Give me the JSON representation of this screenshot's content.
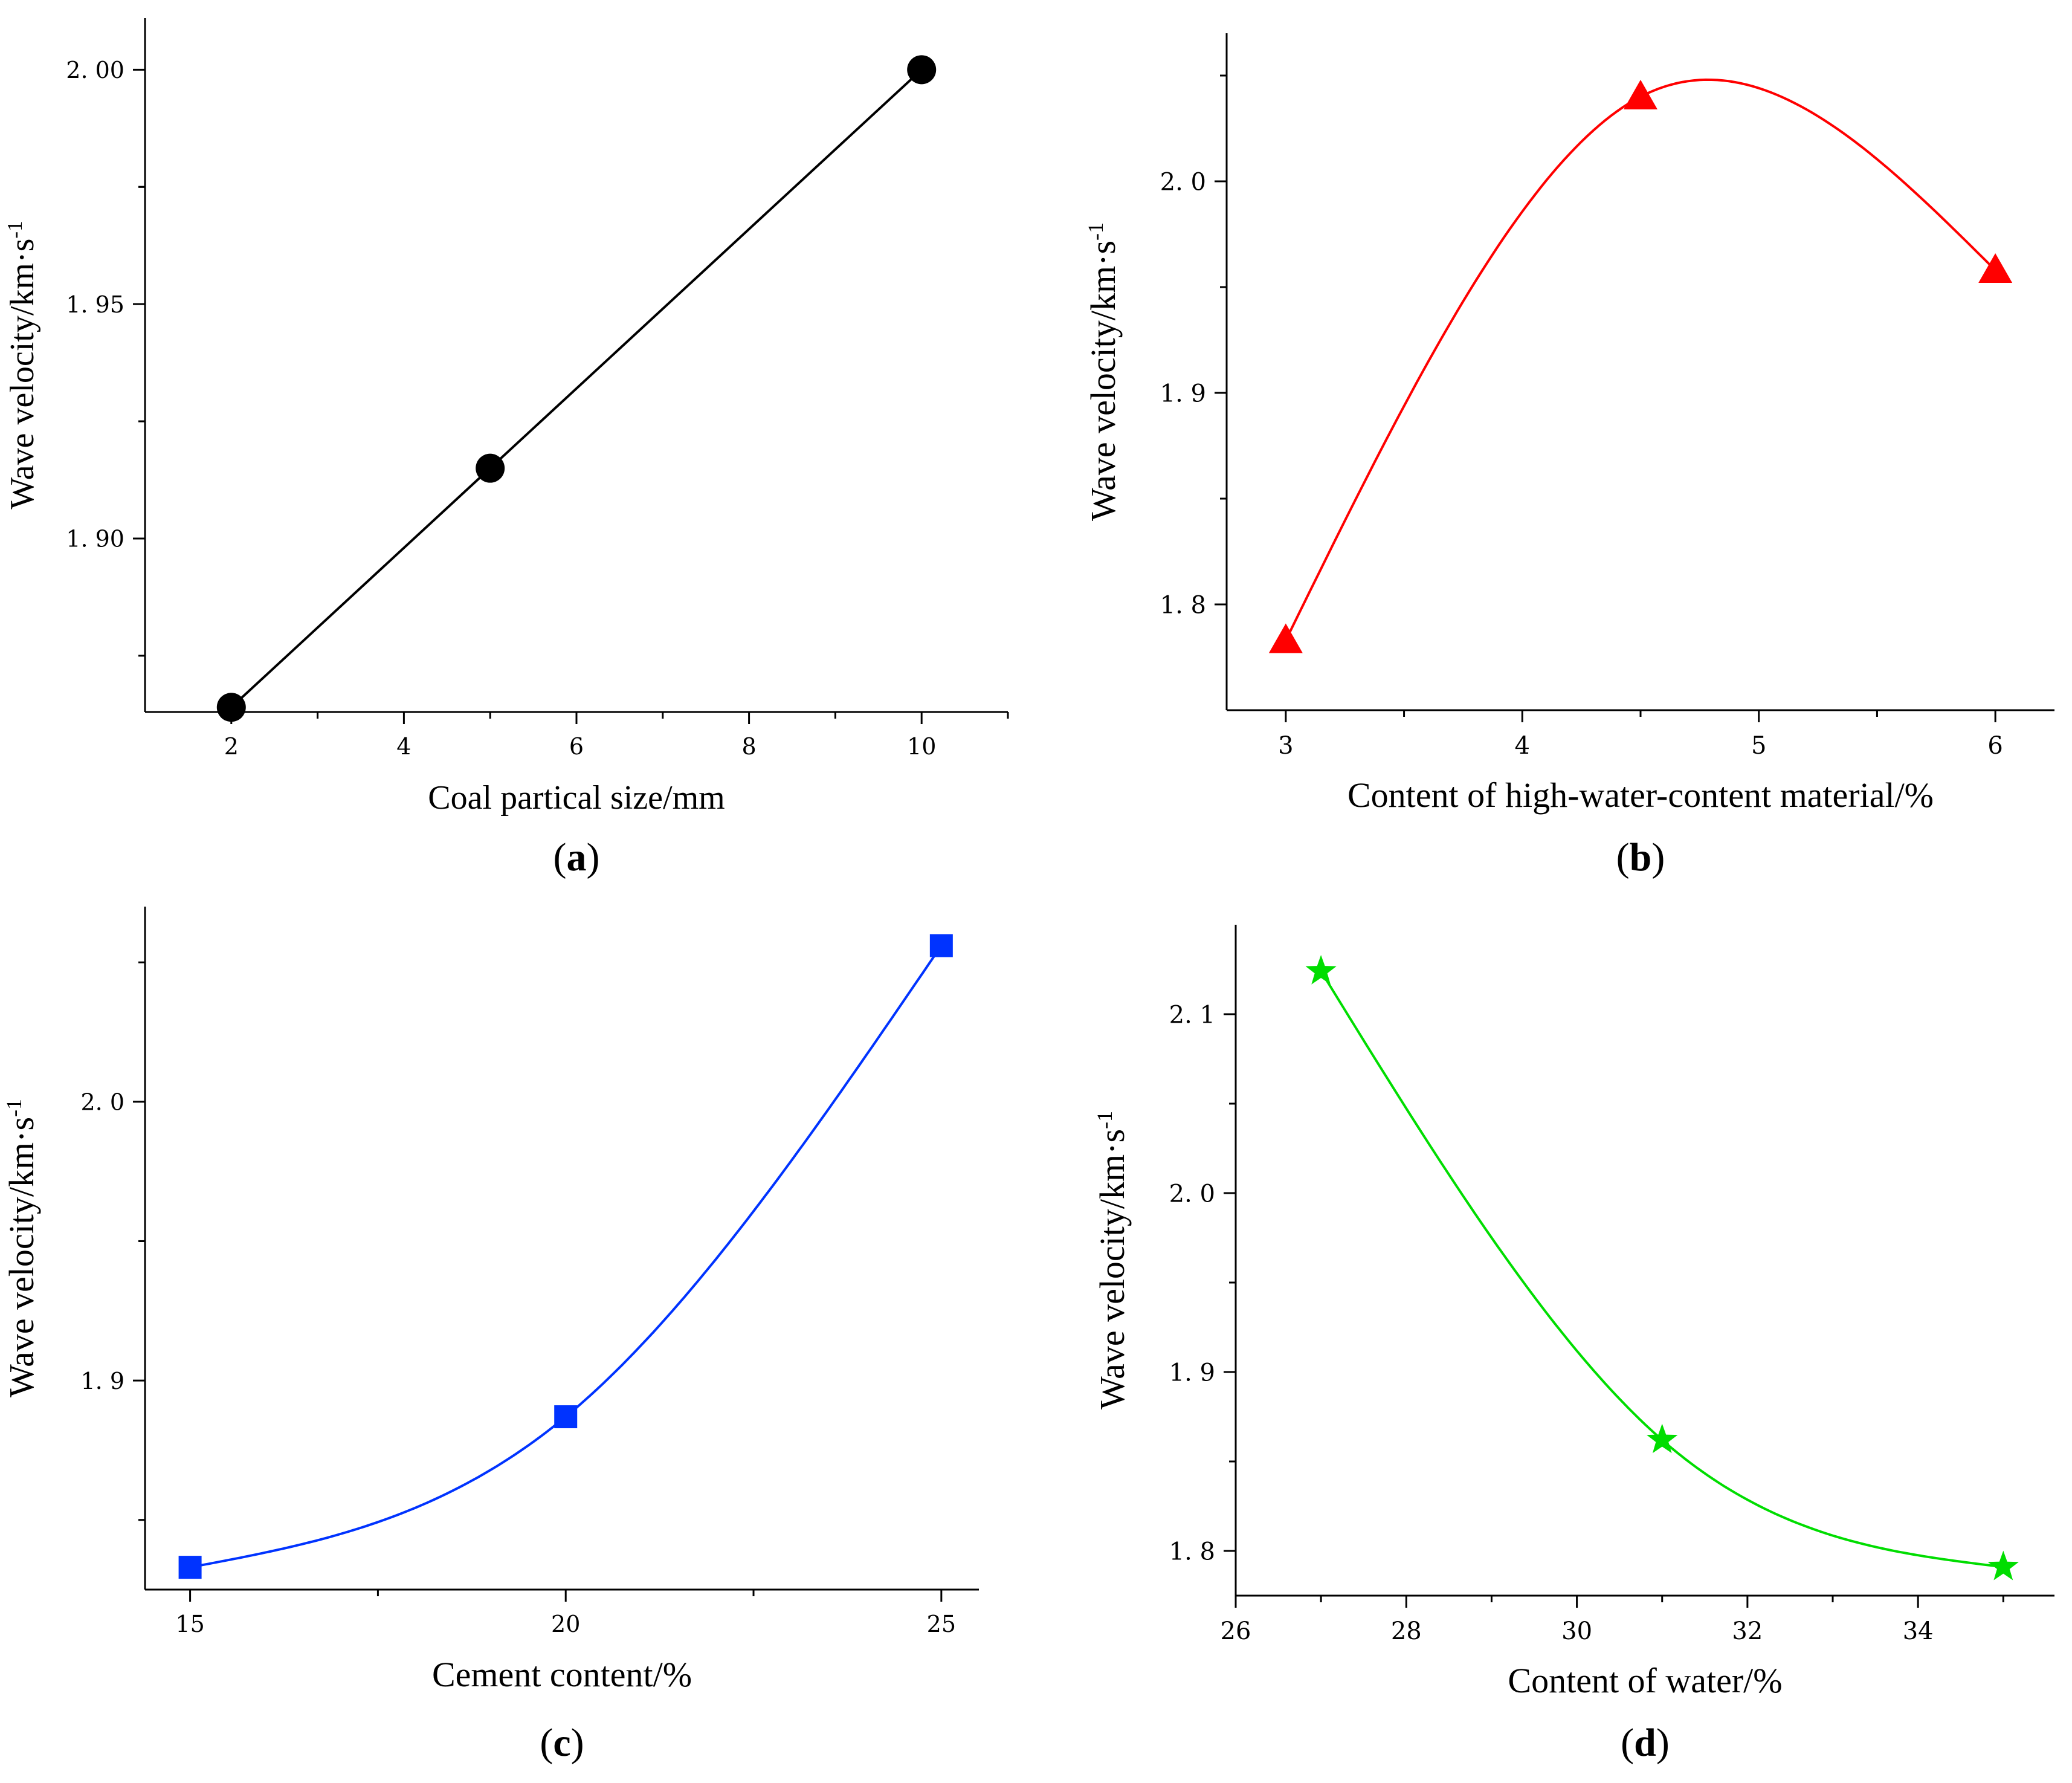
{
  "chart_data": [
    {
      "panel": "(a)",
      "panel_letter": "a",
      "type": "line",
      "curve": "linear",
      "marker": "circle",
      "color": "#000000",
      "xlabel": "Coal partical size/mm",
      "ylabel": "Wave velocity/km·s",
      "ylabel_sup": "-1",
      "xlim": [
        1,
        11
      ],
      "ylim": [
        1.863,
        2.011
      ],
      "xticks": [
        2,
        4,
        6,
        8,
        10
      ],
      "xtick_labels": [
        "2",
        "4",
        "6",
        "8",
        "10"
      ],
      "xminor": [
        3,
        5,
        7,
        9,
        11
      ],
      "yticks": [
        1.9,
        1.95,
        2.0
      ],
      "ytick_labels": [
        "1. 90",
        "1. 95",
        "2. 00"
      ],
      "x": [
        2,
        5,
        10
      ],
      "y": [
        1.864,
        1.915,
        2.0
      ]
    },
    {
      "panel": "(b)",
      "panel_letter": "b",
      "type": "line",
      "curve": "smooth",
      "marker": "triangle",
      "color": "#ff0000",
      "xlabel": "Content of high-water-content material/%",
      "ylabel": "Wave velocity/km·s",
      "ylabel_sup": "-1",
      "xlim": [
        2.75,
        6.25
      ],
      "ylim": [
        1.75,
        2.07
      ],
      "xticks": [
        3,
        4,
        5,
        6
      ],
      "xtick_labels": [
        "3",
        "4",
        "5",
        "6"
      ],
      "xminor": [
        3.5,
        4.5,
        5.5
      ],
      "yticks": [
        1.8,
        1.9,
        2.0
      ],
      "ytick_labels": [
        "1. 8",
        "1. 9",
        "2. 0"
      ],
      "x": [
        3,
        4.5,
        6
      ],
      "y": [
        1.783,
        2.04,
        1.958
      ]
    },
    {
      "panel": "(c)",
      "panel_letter": "c",
      "type": "line",
      "curve": "smooth",
      "marker": "square",
      "color": "#0033ff",
      "xlabel": "Cement content/%",
      "ylabel": "Wave velocity/km·s",
      "ylabel_sup": "-1",
      "xlim": [
        14.4,
        25.5
      ],
      "ylim": [
        1.825,
        2.07
      ],
      "xticks": [
        15,
        20,
        25
      ],
      "xtick_labels": [
        "15",
        "20",
        "25"
      ],
      "xminor": [
        17.5,
        22.5
      ],
      "yticks": [
        1.9,
        2.0
      ],
      "ytick_labels": [
        "1. 9",
        "2. 0"
      ],
      "x": [
        15,
        20,
        25
      ],
      "y": [
        1.833,
        1.887,
        2.056
      ]
    },
    {
      "panel": "(d)",
      "panel_letter": "d",
      "type": "line",
      "curve": "smooth",
      "marker": "star",
      "color": "#00dd00",
      "xlabel": "Content of water/%",
      "ylabel": "Wave velocity/km·s",
      "ylabel_sup": "-1",
      "xlim": [
        26,
        35.6
      ],
      "ylim": [
        1.775,
        2.15
      ],
      "xticks": [
        26,
        28,
        30,
        32,
        34
      ],
      "xtick_labels": [
        "26",
        "28",
        "30",
        "32",
        "34"
      ],
      "xminor": [
        27,
        29,
        31,
        33,
        35
      ],
      "yticks": [
        1.8,
        1.9,
        2.0,
        2.1
      ],
      "ytick_labels": [
        "1. 8",
        "1. 9",
        "2. 0",
        "2. 1"
      ],
      "x": [
        27,
        31,
        35
      ],
      "y": [
        2.124,
        1.862,
        1.791
      ]
    }
  ]
}
